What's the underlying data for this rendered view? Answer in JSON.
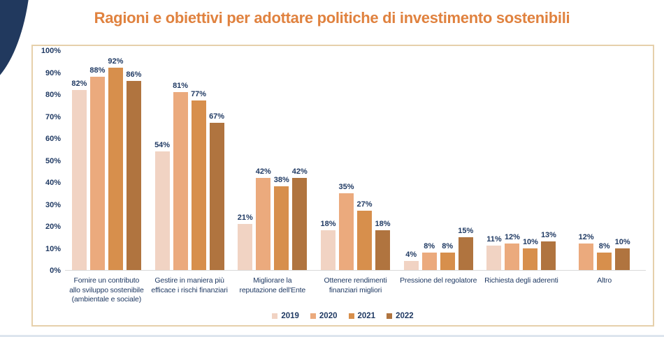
{
  "title": {
    "text": "Ragioni e obiettivi per adottare politiche di investimento sostenibili"
  },
  "colors": {
    "title_orange": "#e0823f",
    "text_navy": "#203a63",
    "frame_border": "#e6d0ab",
    "axis_line": "#d9d9d9",
    "corner_navy": "#21395e",
    "series_2019": "#f1d3c3",
    "series_2020": "#ebaa7d",
    "series_2021": "#d78f4c",
    "series_2022": "#b0743f"
  },
  "chart_data": {
    "type": "bar",
    "title": "Ragioni e obiettivi per adottare politiche di investimento sostenibili",
    "categories": [
      "Fornire un contributo allo sviluppo sostenibile (ambientale e sociale)",
      "Gestire in maniera più efficace i rischi finanziari",
      "Migliorare la reputazione dell'Ente",
      "Ottenere rendimenti finanziari migliori",
      "Pressione del regolatore",
      "Richiesta degli aderenti",
      "Altro"
    ],
    "category_lines": [
      [
        "Fornire un contributo",
        "allo sviluppo sostenibile",
        "(ambientale e sociale)"
      ],
      [
        "Gestire in maniera più",
        "efficace i rischi finanziari"
      ],
      [
        "Migliorare la",
        "reputazione dell'Ente"
      ],
      [
        "Ottenere rendimenti",
        "finanziari migliori"
      ],
      [
        "Pressione del regolatore"
      ],
      [
        "Richiesta degli aderenti"
      ],
      [
        "Altro"
      ]
    ],
    "series": [
      {
        "name": "2019",
        "color": "#f1d3c3",
        "values": [
          82,
          54,
          21,
          18,
          4,
          11,
          null
        ]
      },
      {
        "name": "2020",
        "color": "#ebaa7d",
        "values": [
          88,
          81,
          42,
          35,
          8,
          12,
          12
        ]
      },
      {
        "name": "2021",
        "color": "#d78f4c",
        "values": [
          92,
          77,
          38,
          27,
          8,
          10,
          8
        ]
      },
      {
        "name": "2022",
        "color": "#b0743f",
        "values": [
          86,
          67,
          42,
          18,
          15,
          13,
          10
        ]
      }
    ],
    "ylim": [
      0,
      100
    ],
    "yticks": [
      "100%",
      "90%",
      "80%",
      "70%",
      "60%",
      "50%",
      "40%",
      "30%",
      "20%",
      "10%",
      "0%"
    ],
    "value_suffix": "%",
    "xlabel": "",
    "ylabel": "",
    "grid": false,
    "legend_position": "bottom"
  }
}
